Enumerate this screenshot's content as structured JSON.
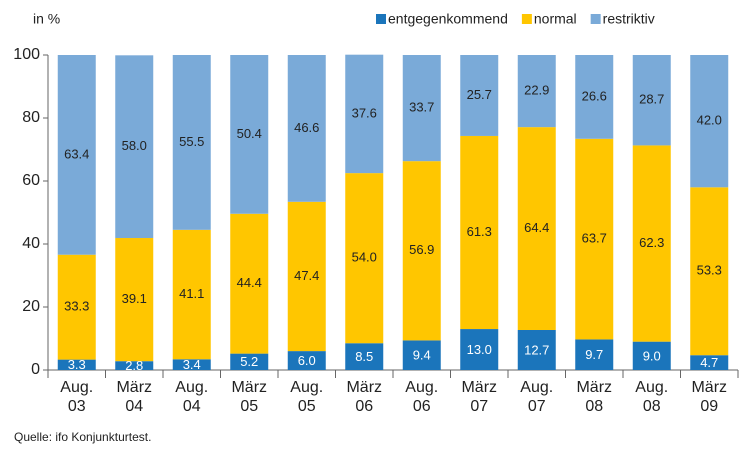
{
  "chart_data": {
    "type": "stacked-bar",
    "y_label": "in %",
    "source": "Quelle: ifo Konjunkturtest.",
    "categories": [
      [
        "Aug.",
        "03"
      ],
      [
        "März",
        "04"
      ],
      [
        "Aug.",
        "04"
      ],
      [
        "März",
        "05"
      ],
      [
        "Aug.",
        "05"
      ],
      [
        "März",
        "06"
      ],
      [
        "Aug.",
        "06"
      ],
      [
        "März",
        "07"
      ],
      [
        "Aug.",
        "07"
      ],
      [
        "März",
        "08"
      ],
      [
        "Aug.",
        "08"
      ],
      [
        "März",
        "09"
      ]
    ],
    "series": [
      {
        "name": "entgegenkommend",
        "color": "#1b75bb",
        "label_color": "#ffffff",
        "values": [
          3.3,
          2.8,
          3.4,
          5.2,
          6.0,
          8.5,
          9.4,
          13.0,
          12.7,
          9.7,
          9.0,
          4.7
        ],
        "value_labels": [
          "3.3",
          "2.8",
          "3.4",
          "5.2",
          "6.0",
          "8.5",
          "9.4",
          "13.0",
          "12.7",
          "9.7",
          "9.0",
          "4.7"
        ]
      },
      {
        "name": "normal",
        "color": "#ffc600",
        "label_color": "#222222",
        "values": [
          33.3,
          39.1,
          41.1,
          44.4,
          47.4,
          54.0,
          56.9,
          61.3,
          64.4,
          63.7,
          62.3,
          53.3
        ],
        "value_labels": [
          "33.3",
          "39.1",
          "41.1",
          "44.4",
          "47.4",
          "54.0",
          "56.9",
          "61.3",
          "64.4",
          "63.7",
          "62.3",
          "53.3"
        ]
      },
      {
        "name": "restriktiv",
        "color": "#7aaad8",
        "label_color": "#222222",
        "values": [
          63.4,
          58.0,
          55.5,
          50.4,
          46.6,
          37.6,
          33.7,
          25.7,
          22.9,
          26.6,
          28.7,
          42.0
        ],
        "value_labels": [
          "63.4",
          "58.0",
          "55.5",
          "50.4",
          "46.6",
          "37.6",
          "33.7",
          "25.7",
          "22.9",
          "26.6",
          "28.7",
          "42.0"
        ]
      }
    ],
    "ylim": [
      0,
      100
    ],
    "yticks": [
      0,
      20,
      40,
      60,
      80,
      100
    ],
    "grid": false,
    "legend": "top-right"
  }
}
